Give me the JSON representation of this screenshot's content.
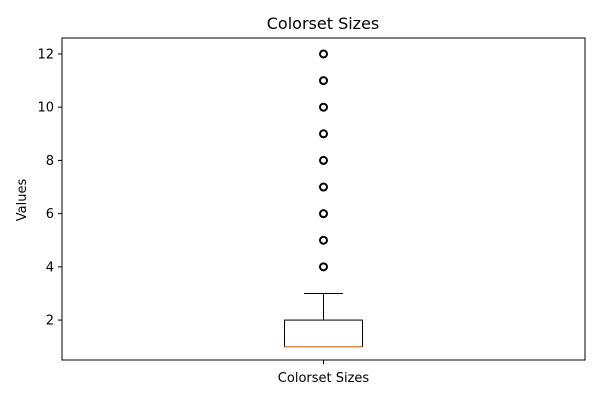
{
  "chart_data": {
    "type": "boxplot",
    "title": "Colorset Sizes",
    "xlabel": "",
    "ylabel": "Values",
    "categories": [
      "Colorset Sizes"
    ],
    "ylim": [
      0.5,
      12.6
    ],
    "yticks": [
      2,
      4,
      6,
      8,
      10,
      12
    ],
    "grid": false,
    "boxes": [
      {
        "name": "Colorset Sizes",
        "whisker_low": 1,
        "q1": 1,
        "median": 1,
        "q3": 2,
        "whisker_high": 3,
        "outliers": [
          4,
          5,
          6,
          7,
          8,
          9,
          10,
          11,
          12
        ]
      }
    ],
    "colors": {
      "box": "#000000",
      "median": "#e08a50",
      "flier": "#000000"
    }
  }
}
